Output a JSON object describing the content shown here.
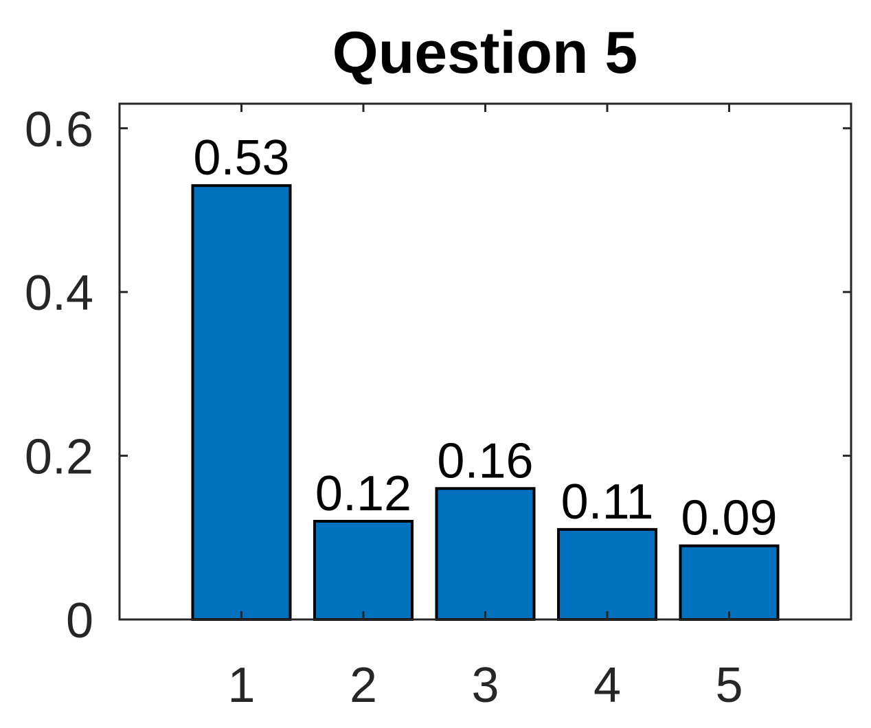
{
  "chart_data": {
    "type": "bar",
    "title": "Question 5",
    "xlabel": "",
    "ylabel": "",
    "categories": [
      "1",
      "2",
      "3",
      "4",
      "5"
    ],
    "values": [
      0.53,
      0.12,
      0.16,
      0.11,
      0.09
    ],
    "data_labels": [
      "0.53",
      "0.12",
      "0.16",
      "0.11",
      "0.09"
    ],
    "ylim": [
      0,
      0.63
    ],
    "xlim": [
      0,
      6
    ],
    "yticks": [
      0,
      0.2,
      0.4,
      0.6
    ],
    "ytick_labels": [
      "0",
      "0.2",
      "0.4",
      "0.6"
    ],
    "bar_color": "#0072BD",
    "grid": false,
    "legend": "none"
  }
}
